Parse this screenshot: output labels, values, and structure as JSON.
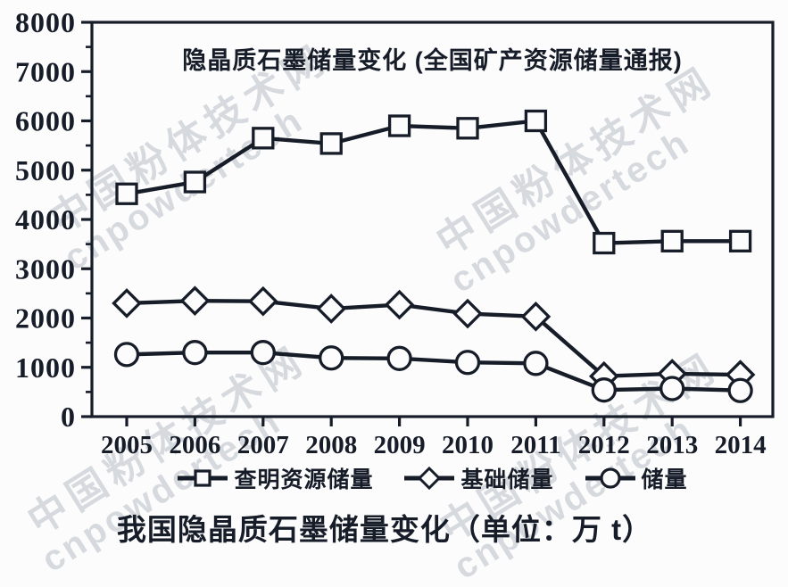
{
  "page": {
    "background": "#fcfcfd",
    "ink_color": "#161c28",
    "watermark_color": "#d6dade"
  },
  "watermark": {
    "line1": "中国粉体技术网",
    "line2": "cnpowdertech"
  },
  "chart_data": {
    "type": "line",
    "title": "隐晶质石墨储量变化 (全国矿产资源储量通报)",
    "caption": "我国隐晶质石墨储量变化（单位：万 t）",
    "categories": [
      "2005",
      "2006",
      "2007",
      "2008",
      "2009",
      "2010",
      "2011",
      "2012",
      "2013",
      "2014"
    ],
    "xlabel": "",
    "ylabel": "",
    "ylim": [
      0,
      8000
    ],
    "ytick_major": 1000,
    "ytick_minor": 500,
    "ytick_labels": [
      "0",
      "1000",
      "2000",
      "3000",
      "4000",
      "5000",
      "6000",
      "7000",
      "8000"
    ],
    "grid": false,
    "legend_position": "bottom",
    "series": [
      {
        "name": "查明资源储量",
        "marker": "square",
        "values": [
          4520,
          4760,
          5650,
          5540,
          5900,
          5850,
          6000,
          3520,
          3560,
          3560
        ]
      },
      {
        "name": "基础储量",
        "marker": "diamond",
        "values": [
          2300,
          2350,
          2340,
          2190,
          2270,
          2090,
          2030,
          820,
          870,
          850
        ]
      },
      {
        "name": "储量",
        "marker": "circle",
        "values": [
          1260,
          1300,
          1300,
          1190,
          1180,
          1100,
          1080,
          540,
          570,
          530
        ]
      }
    ]
  }
}
